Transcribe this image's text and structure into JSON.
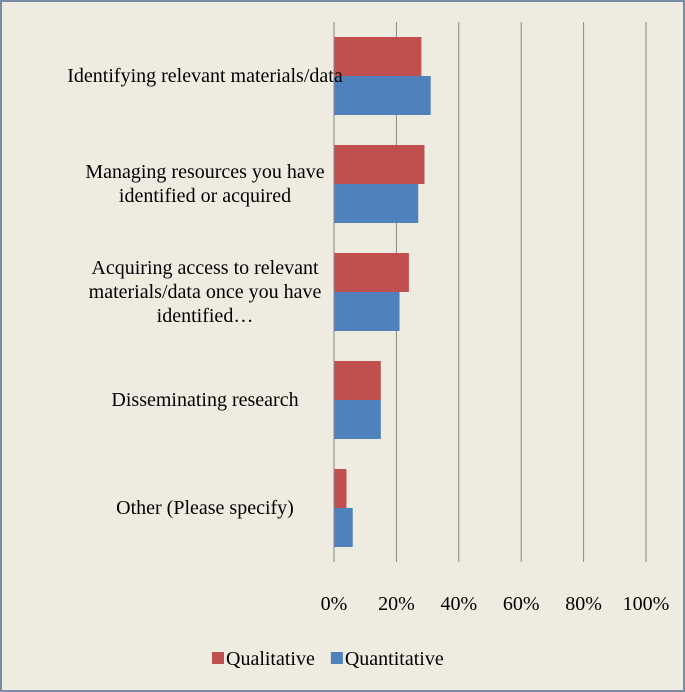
{
  "chart_data": {
    "type": "bar",
    "orientation": "horizontal",
    "categories": [
      "Identifying relevant materials/data",
      "Managing resources you have identified or acquired",
      "Acquiring access to relevant materials/data once you have identified…",
      "Disseminating research",
      "Other (Please specify)"
    ],
    "series": [
      {
        "name": "Qualitative",
        "color": "#c0504d",
        "values": [
          28,
          29,
          24,
          15,
          4
        ]
      },
      {
        "name": "Quantitative",
        "color": "#4f81bd",
        "values": [
          31,
          27,
          21,
          15,
          6
        ]
      }
    ],
    "xlim": [
      0,
      100
    ],
    "xticks": [
      {
        "value": 0,
        "label": "0%"
      },
      {
        "value": 20,
        "label": "20%"
      },
      {
        "value": 40,
        "label": "40%"
      },
      {
        "value": 60,
        "label": "60%"
      },
      {
        "value": 80,
        "label": "80%"
      },
      {
        "value": 100,
        "label": "100%"
      }
    ],
    "grid": true,
    "legend": "bottom"
  }
}
